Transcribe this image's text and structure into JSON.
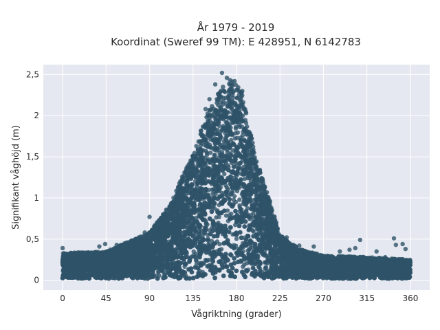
{
  "chart_data": {
    "type": "scatter",
    "title_line1": "År 1979 - 2019",
    "title_line2": "Koordinat (Sweref 99 TM): E 428951, N 6142783",
    "xlabel": "Vågriktning (grader)",
    "ylabel": "Signifikant våghöjd (m)",
    "xlim": [
      -20,
      380
    ],
    "ylim": [
      -0.12,
      2.62
    ],
    "x_ticks": [
      0,
      45,
      90,
      135,
      180,
      225,
      270,
      315,
      360
    ],
    "x_tick_labels": [
      "0",
      "45",
      "90",
      "135",
      "180",
      "225",
      "270",
      "315",
      "360"
    ],
    "y_ticks": [
      0,
      0.5,
      1,
      1.5,
      2,
      2.5
    ],
    "y_tick_labels": [
      "0",
      "0,5",
      "1",
      "1,5",
      "2",
      "2,5"
    ],
    "grid": true,
    "legend": "none",
    "marker_color": "#2e5268",
    "plot_background": "#e5e8f0",
    "grid_color": "#ffffff",
    "envelope": [
      {
        "x": 0,
        "y_max": 0.33
      },
      {
        "x": 45,
        "y_max": 0.35
      },
      {
        "x": 90,
        "y_max": 0.58
      },
      {
        "x": 110,
        "y_max": 0.9
      },
      {
        "x": 135,
        "y_max": 1.55
      },
      {
        "x": 150,
        "y_max": 2.05
      },
      {
        "x": 165,
        "y_max": 2.35
      },
      {
        "x": 175,
        "y_max": 2.45
      },
      {
        "x": 185,
        "y_max": 2.3
      },
      {
        "x": 200,
        "y_max": 1.5
      },
      {
        "x": 215,
        "y_max": 0.95
      },
      {
        "x": 225,
        "y_max": 0.55
      },
      {
        "x": 245,
        "y_max": 0.38
      },
      {
        "x": 270,
        "y_max": 0.3
      },
      {
        "x": 315,
        "y_max": 0.28
      },
      {
        "x": 360,
        "y_max": 0.25
      }
    ],
    "outliers": [
      {
        "x": 0,
        "y": 0.39
      },
      {
        "x": 10,
        "y": 0.3
      },
      {
        "x": 30,
        "y": 0.33
      },
      {
        "x": 38,
        "y": 0.41
      },
      {
        "x": 44,
        "y": 0.44
      },
      {
        "x": 56,
        "y": 0.43
      },
      {
        "x": 65,
        "y": 0.45
      },
      {
        "x": 75,
        "y": 0.47
      },
      {
        "x": 85,
        "y": 0.58
      },
      {
        "x": 90,
        "y": 0.77
      },
      {
        "x": 100,
        "y": 0.62
      },
      {
        "x": 108,
        "y": 0.8
      },
      {
        "x": 115,
        "y": 0.7
      },
      {
        "x": 125,
        "y": 1.07
      },
      {
        "x": 140,
        "y": 1.55
      },
      {
        "x": 148,
        "y": 2.08
      },
      {
        "x": 152,
        "y": 2.2
      },
      {
        "x": 158,
        "y": 2.38
      },
      {
        "x": 165,
        "y": 2.52
      },
      {
        "x": 170,
        "y": 2.46
      },
      {
        "x": 178,
        "y": 2.42
      },
      {
        "x": 186,
        "y": 2.3
      },
      {
        "x": 196,
        "y": 1.45
      },
      {
        "x": 205,
        "y": 1.1
      },
      {
        "x": 210,
        "y": 0.9
      },
      {
        "x": 220,
        "y": 0.73
      },
      {
        "x": 232,
        "y": 0.52
      },
      {
        "x": 245,
        "y": 0.42
      },
      {
        "x": 260,
        "y": 0.41
      },
      {
        "x": 287,
        "y": 0.35
      },
      {
        "x": 297,
        "y": 0.37
      },
      {
        "x": 303,
        "y": 0.39
      },
      {
        "x": 308,
        "y": 0.49
      },
      {
        "x": 325,
        "y": 0.35
      },
      {
        "x": 334,
        "y": 0.28
      },
      {
        "x": 343,
        "y": 0.51
      },
      {
        "x": 345,
        "y": 0.43
      },
      {
        "x": 352,
        "y": 0.44
      },
      {
        "x": 355,
        "y": 0.38
      }
    ]
  }
}
